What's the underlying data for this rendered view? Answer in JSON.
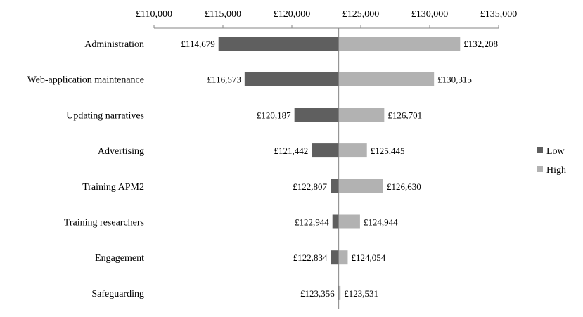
{
  "chart_data": {
    "type": "bar",
    "orientation": "horizontal",
    "subtype": "tornado",
    "baseline": 123400,
    "xlim": [
      110000,
      135000
    ],
    "x_ticks": [
      110000,
      115000,
      120000,
      125000,
      130000,
      135000
    ],
    "x_tick_labels": [
      "£110,000",
      "£115,000",
      "£120,000",
      "£125,000",
      "£130,000",
      "£135,000"
    ],
    "axis_position": "top",
    "grid": false,
    "legend": "right",
    "categories": [
      "Administration",
      "Web-application maintenance",
      "Updating narratives",
      "Advertising",
      "Training APM2",
      "Training researchers",
      "Engagement",
      "Safeguarding"
    ],
    "series": [
      {
        "name": "Low",
        "color": "#5f5f5f",
        "values": [
          114679,
          116573,
          120187,
          121442,
          122807,
          122944,
          122834,
          123356
        ],
        "labels": [
          "£114,679",
          "£116,573",
          "£120,187",
          "£121,442",
          "£122,807",
          "£122,944",
          "£122,834",
          "£123,356"
        ]
      },
      {
        "name": "High",
        "color": "#b2b2b2",
        "values": [
          132208,
          130315,
          126701,
          125445,
          126630,
          124944,
          124054,
          123531
        ],
        "labels": [
          "£132,208",
          "£130,315",
          "£126,701",
          "£125,445",
          "£126,630",
          "£124,944",
          "£124,054",
          "£123,531"
        ]
      }
    ]
  }
}
